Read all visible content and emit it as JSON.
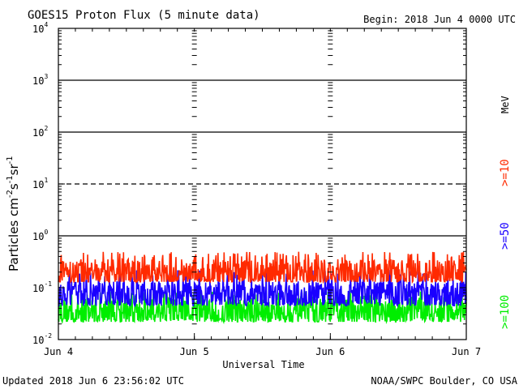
{
  "header": {
    "title": "GOES15 Proton Flux (5 minute data)",
    "begin": "Begin: 2018 Jun 4 0000 UTC"
  },
  "footer": {
    "updated": "Updated 2018 Jun  6 23:56:02 UTC",
    "credit": "NOAA/SWPC Boulder, CO USA"
  },
  "chart_data": {
    "type": "line",
    "title": "GOES15 Proton Flux (5 minute data)",
    "xlabel": "Universal Time",
    "ylabel": "Particles cm-2s-1sr-1",
    "yscale": "log",
    "ylim": [
      0.01,
      10000
    ],
    "xlim_days": [
      0,
      3
    ],
    "x_ticks": [
      "Jun 4",
      "Jun 5",
      "Jun 6",
      "Jun 7"
    ],
    "y_ticks": [
      {
        "base": "10",
        "exp": "-2"
      },
      {
        "base": "10",
        "exp": "-1"
      },
      {
        "base": "10",
        "exp": "0"
      },
      {
        "base": "10",
        "exp": "1"
      },
      {
        "base": "10",
        "exp": "2"
      },
      {
        "base": "10",
        "exp": "3"
      },
      {
        "base": "10",
        "exp": "4"
      }
    ],
    "reference_lines": [
      {
        "value": 1,
        "style": "solid"
      },
      {
        "value": 10,
        "style": "dashed"
      },
      {
        "value": 100,
        "style": "solid"
      },
      {
        "value": 1000,
        "style": "solid"
      }
    ],
    "legend_unit": "MeV",
    "series": [
      {
        "name": ">=10",
        "color": "#ff2a00",
        "baseline": 0.2,
        "low": 0.13,
        "high": 0.5,
        "points_per_day": 288
      },
      {
        "name": ">=50",
        "color": "#1a00ff",
        "baseline": 0.075,
        "low": 0.045,
        "high": 0.22,
        "points_per_day": 288
      },
      {
        "name": ">=100",
        "color": "#00ee00",
        "baseline": 0.035,
        "low": 0.022,
        "high": 0.085,
        "points_per_day": 288
      }
    ]
  }
}
